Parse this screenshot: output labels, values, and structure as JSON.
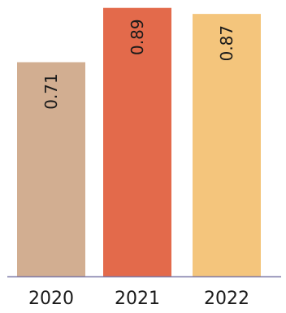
{
  "chart_data": {
    "type": "bar",
    "categories": [
      "2020",
      "2021",
      "2022"
    ],
    "values": [
      0.71,
      0.89,
      0.87
    ],
    "value_labels": [
      "0.71",
      "0.89",
      "0.87"
    ],
    "colors": [
      "#D2AE91",
      "#E36A4B",
      "#F4C57C"
    ],
    "axis_color": "#7E7AA8",
    "ylim": [
      0,
      0.9
    ],
    "grid": false,
    "legend": "none",
    "data_label_orientation": "vertical"
  }
}
